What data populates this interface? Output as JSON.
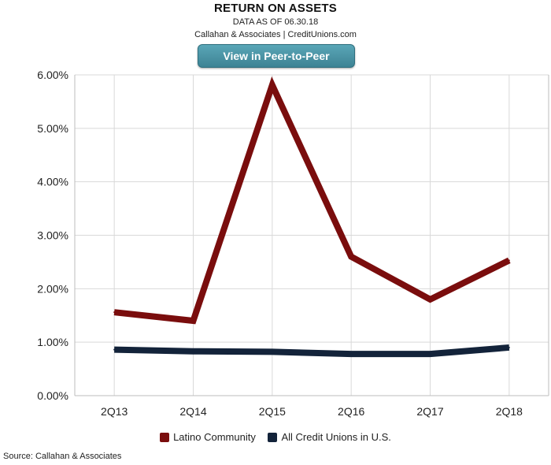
{
  "header": {
    "title": "RETURN ON ASSETS",
    "subtitle": "DATA AS OF 06.30.18",
    "credit": "Callahan & Associates | CreditUnions.com",
    "button_label": "View in Peer-to-Peer"
  },
  "source": "Source: Callahan & Associates",
  "colors": {
    "button": "#4a95a6",
    "latino": "#7a0d0d",
    "all_cu": "#13233a",
    "grid": "#d9d9d9"
  },
  "chart_data": {
    "type": "line",
    "title": "RETURN ON ASSETS",
    "categories": [
      "2Q13",
      "2Q14",
      "2Q15",
      "2Q16",
      "2Q17",
      "2Q18"
    ],
    "ylim": [
      0,
      6
    ],
    "yticks": [
      0,
      1,
      2,
      3,
      4,
      5,
      6
    ],
    "ytick_labels": [
      "0.00%",
      "1.00%",
      "2.00%",
      "3.00%",
      "4.00%",
      "5.00%",
      "6.00%"
    ],
    "grid": true,
    "legend_position": "bottom",
    "series": [
      {
        "name": "Latino Community",
        "color": "#7a0d0d",
        "values": [
          1.56,
          1.4,
          5.81,
          2.6,
          1.8,
          2.53
        ]
      },
      {
        "name": "All Credit Unions in U.S.",
        "color": "#13233a",
        "values": [
          0.86,
          0.83,
          0.82,
          0.78,
          0.78,
          0.9
        ]
      }
    ]
  }
}
